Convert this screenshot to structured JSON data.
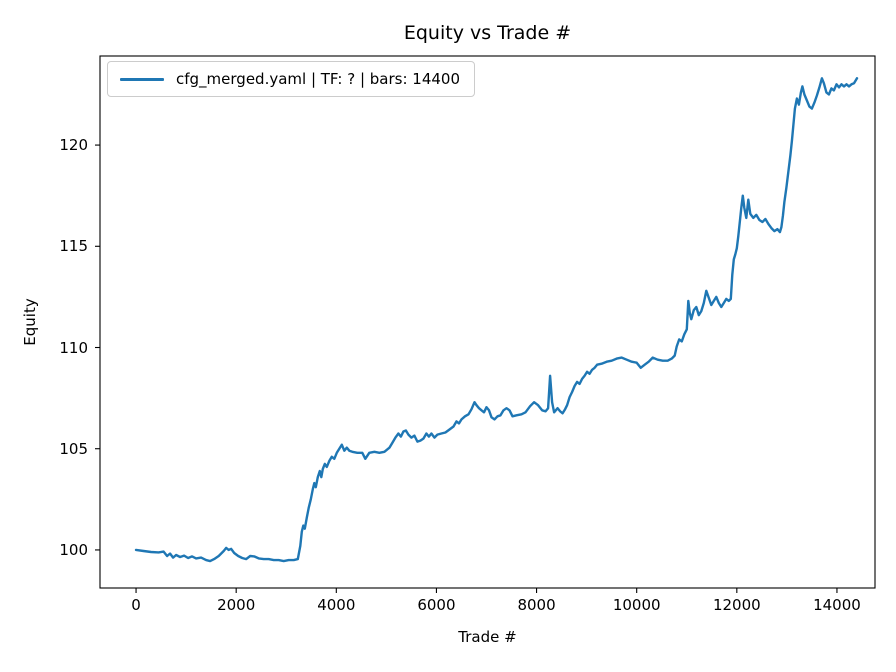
{
  "figure": {
    "background": "#ffffff",
    "text_color": "#000000",
    "spine_color": "#000000"
  },
  "chart_data": {
    "type": "line",
    "title": "Equity vs Trade #",
    "xlabel": "Trade #",
    "ylabel": "Equity",
    "xlim": [
      -720,
      14760
    ],
    "ylim": [
      98.12,
      124.4
    ],
    "x_ticks": [
      0,
      2000,
      4000,
      6000,
      8000,
      10000,
      12000,
      14000
    ],
    "y_ticks": [
      100,
      105,
      110,
      115,
      120
    ],
    "grid": false,
    "legend": {
      "position": "upper-left",
      "entries": [
        {
          "label": "cfg_merged.yaml | TF: ? | bars: 14400",
          "color": "#1f77b4"
        }
      ]
    },
    "series": [
      {
        "name": "cfg_merged.yaml | TF: ? | bars: 14400",
        "color": "#1f77b4",
        "points": [
          [
            0,
            100.0
          ],
          [
            150,
            99.95
          ],
          [
            300,
            99.9
          ],
          [
            450,
            99.88
          ],
          [
            550,
            99.92
          ],
          [
            620,
            99.7
          ],
          [
            680,
            99.82
          ],
          [
            740,
            99.62
          ],
          [
            800,
            99.75
          ],
          [
            880,
            99.65
          ],
          [
            960,
            99.72
          ],
          [
            1040,
            99.6
          ],
          [
            1120,
            99.68
          ],
          [
            1200,
            99.58
          ],
          [
            1300,
            99.62
          ],
          [
            1400,
            99.5
          ],
          [
            1480,
            99.45
          ],
          [
            1560,
            99.55
          ],
          [
            1650,
            99.7
          ],
          [
            1750,
            99.95
          ],
          [
            1800,
            100.1
          ],
          [
            1850,
            100.0
          ],
          [
            1900,
            100.05
          ],
          [
            1960,
            99.85
          ],
          [
            2040,
            99.7
          ],
          [
            2120,
            99.6
          ],
          [
            2200,
            99.55
          ],
          [
            2280,
            99.7
          ],
          [
            2360,
            99.68
          ],
          [
            2450,
            99.58
          ],
          [
            2550,
            99.55
          ],
          [
            2650,
            99.55
          ],
          [
            2750,
            99.5
          ],
          [
            2850,
            99.5
          ],
          [
            2950,
            99.45
          ],
          [
            3050,
            99.5
          ],
          [
            3150,
            99.5
          ],
          [
            3230,
            99.55
          ],
          [
            3280,
            100.2
          ],
          [
            3310,
            100.9
          ],
          [
            3340,
            101.2
          ],
          [
            3370,
            101.05
          ],
          [
            3410,
            101.6
          ],
          [
            3450,
            102.1
          ],
          [
            3490,
            102.5
          ],
          [
            3530,
            103.0
          ],
          [
            3560,
            103.3
          ],
          [
            3590,
            103.1
          ],
          [
            3630,
            103.6
          ],
          [
            3670,
            103.9
          ],
          [
            3700,
            103.6
          ],
          [
            3730,
            104.0
          ],
          [
            3770,
            104.25
          ],
          [
            3810,
            104.1
          ],
          [
            3860,
            104.4
          ],
          [
            3910,
            104.6
          ],
          [
            3960,
            104.5
          ],
          [
            4010,
            104.8
          ],
          [
            4060,
            105.0
          ],
          [
            4110,
            105.2
          ],
          [
            4160,
            104.9
          ],
          [
            4210,
            105.05
          ],
          [
            4260,
            104.9
          ],
          [
            4320,
            104.85
          ],
          [
            4420,
            104.8
          ],
          [
            4520,
            104.8
          ],
          [
            4580,
            104.5
          ],
          [
            4660,
            104.8
          ],
          [
            4760,
            104.85
          ],
          [
            4860,
            104.8
          ],
          [
            4960,
            104.85
          ],
          [
            5060,
            105.05
          ],
          [
            5120,
            105.3
          ],
          [
            5180,
            105.55
          ],
          [
            5240,
            105.75
          ],
          [
            5290,
            105.6
          ],
          [
            5340,
            105.85
          ],
          [
            5390,
            105.9
          ],
          [
            5440,
            105.7
          ],
          [
            5500,
            105.55
          ],
          [
            5560,
            105.65
          ],
          [
            5620,
            105.35
          ],
          [
            5680,
            105.4
          ],
          [
            5740,
            105.5
          ],
          [
            5800,
            105.75
          ],
          [
            5850,
            105.6
          ],
          [
            5900,
            105.75
          ],
          [
            5960,
            105.55
          ],
          [
            6020,
            105.7
          ],
          [
            6100,
            105.75
          ],
          [
            6180,
            105.8
          ],
          [
            6260,
            105.95
          ],
          [
            6340,
            106.1
          ],
          [
            6400,
            106.35
          ],
          [
            6450,
            106.25
          ],
          [
            6500,
            106.45
          ],
          [
            6570,
            106.6
          ],
          [
            6640,
            106.7
          ],
          [
            6700,
            106.95
          ],
          [
            6760,
            107.3
          ],
          [
            6800,
            107.15
          ],
          [
            6850,
            107.0
          ],
          [
            6900,
            106.9
          ],
          [
            6950,
            106.8
          ],
          [
            7000,
            107.05
          ],
          [
            7050,
            106.9
          ],
          [
            7100,
            106.55
          ],
          [
            7160,
            106.45
          ],
          [
            7220,
            106.6
          ],
          [
            7280,
            106.65
          ],
          [
            7340,
            106.9
          ],
          [
            7400,
            107.0
          ],
          [
            7460,
            106.9
          ],
          [
            7520,
            106.6
          ],
          [
            7600,
            106.65
          ],
          [
            7700,
            106.7
          ],
          [
            7780,
            106.8
          ],
          [
            7870,
            107.1
          ],
          [
            7950,
            107.3
          ],
          [
            8030,
            107.15
          ],
          [
            8110,
            106.9
          ],
          [
            8180,
            106.85
          ],
          [
            8230,
            107.0
          ],
          [
            8270,
            108.6
          ],
          [
            8310,
            107.3
          ],
          [
            8350,
            106.8
          ],
          [
            8420,
            107.0
          ],
          [
            8470,
            106.85
          ],
          [
            8520,
            106.75
          ],
          [
            8570,
            106.95
          ],
          [
            8610,
            107.15
          ],
          [
            8660,
            107.55
          ],
          [
            8710,
            107.8
          ],
          [
            8760,
            108.1
          ],
          [
            8810,
            108.3
          ],
          [
            8860,
            108.2
          ],
          [
            8910,
            108.45
          ],
          [
            8960,
            108.6
          ],
          [
            9010,
            108.8
          ],
          [
            9060,
            108.7
          ],
          [
            9110,
            108.9
          ],
          [
            9160,
            109.0
          ],
          [
            9210,
            109.15
          ],
          [
            9300,
            109.2
          ],
          [
            9400,
            109.3
          ],
          [
            9500,
            109.35
          ],
          [
            9600,
            109.45
          ],
          [
            9700,
            109.5
          ],
          [
            9800,
            109.4
          ],
          [
            9900,
            109.3
          ],
          [
            10000,
            109.25
          ],
          [
            10080,
            109.0
          ],
          [
            10160,
            109.15
          ],
          [
            10240,
            109.3
          ],
          [
            10320,
            109.5
          ],
          [
            10420,
            109.4
          ],
          [
            10520,
            109.35
          ],
          [
            10620,
            109.35
          ],
          [
            10700,
            109.45
          ],
          [
            10760,
            109.6
          ],
          [
            10800,
            110.05
          ],
          [
            10850,
            110.4
          ],
          [
            10900,
            110.3
          ],
          [
            10950,
            110.65
          ],
          [
            11000,
            110.9
          ],
          [
            11030,
            112.3
          ],
          [
            11060,
            111.7
          ],
          [
            11090,
            111.4
          ],
          [
            11140,
            111.85
          ],
          [
            11190,
            112.0
          ],
          [
            11240,
            111.6
          ],
          [
            11290,
            111.8
          ],
          [
            11340,
            112.2
          ],
          [
            11390,
            112.8
          ],
          [
            11440,
            112.45
          ],
          [
            11490,
            112.1
          ],
          [
            11540,
            112.3
          ],
          [
            11590,
            112.5
          ],
          [
            11640,
            112.2
          ],
          [
            11690,
            112.0
          ],
          [
            11740,
            112.2
          ],
          [
            11790,
            112.4
          ],
          [
            11840,
            112.3
          ],
          [
            11880,
            112.4
          ],
          [
            11910,
            113.6
          ],
          [
            11940,
            114.35
          ],
          [
            11970,
            114.6
          ],
          [
            12000,
            114.9
          ],
          [
            12030,
            115.5
          ],
          [
            12060,
            116.2
          ],
          [
            12090,
            116.9
          ],
          [
            12120,
            117.5
          ],
          [
            12150,
            116.9
          ],
          [
            12190,
            116.4
          ],
          [
            12230,
            117.3
          ],
          [
            12270,
            116.6
          ],
          [
            12330,
            116.4
          ],
          [
            12390,
            116.55
          ],
          [
            12450,
            116.3
          ],
          [
            12510,
            116.2
          ],
          [
            12570,
            116.35
          ],
          [
            12630,
            116.1
          ],
          [
            12690,
            115.9
          ],
          [
            12750,
            115.75
          ],
          [
            12810,
            115.85
          ],
          [
            12860,
            115.7
          ],
          [
            12890,
            115.95
          ],
          [
            12920,
            116.5
          ],
          [
            12950,
            117.2
          ],
          [
            12990,
            117.9
          ],
          [
            13030,
            118.7
          ],
          [
            13070,
            119.5
          ],
          [
            13100,
            120.2
          ],
          [
            13130,
            121.0
          ],
          [
            13160,
            121.8
          ],
          [
            13200,
            122.3
          ],
          [
            13240,
            122.0
          ],
          [
            13280,
            122.6
          ],
          [
            13310,
            122.9
          ],
          [
            13350,
            122.5
          ],
          [
            13400,
            122.2
          ],
          [
            13450,
            121.9
          ],
          [
            13500,
            121.8
          ],
          [
            13550,
            122.1
          ],
          [
            13600,
            122.45
          ],
          [
            13650,
            122.85
          ],
          [
            13700,
            123.3
          ],
          [
            13740,
            123.05
          ],
          [
            13790,
            122.6
          ],
          [
            13840,
            122.5
          ],
          [
            13890,
            122.8
          ],
          [
            13940,
            122.7
          ],
          [
            13990,
            123.0
          ],
          [
            14040,
            122.85
          ],
          [
            14090,
            123.0
          ],
          [
            14140,
            122.9
          ],
          [
            14190,
            123.0
          ],
          [
            14240,
            122.9
          ],
          [
            14290,
            123.0
          ],
          [
            14340,
            123.05
          ],
          [
            14400,
            123.3
          ]
        ]
      }
    ]
  }
}
